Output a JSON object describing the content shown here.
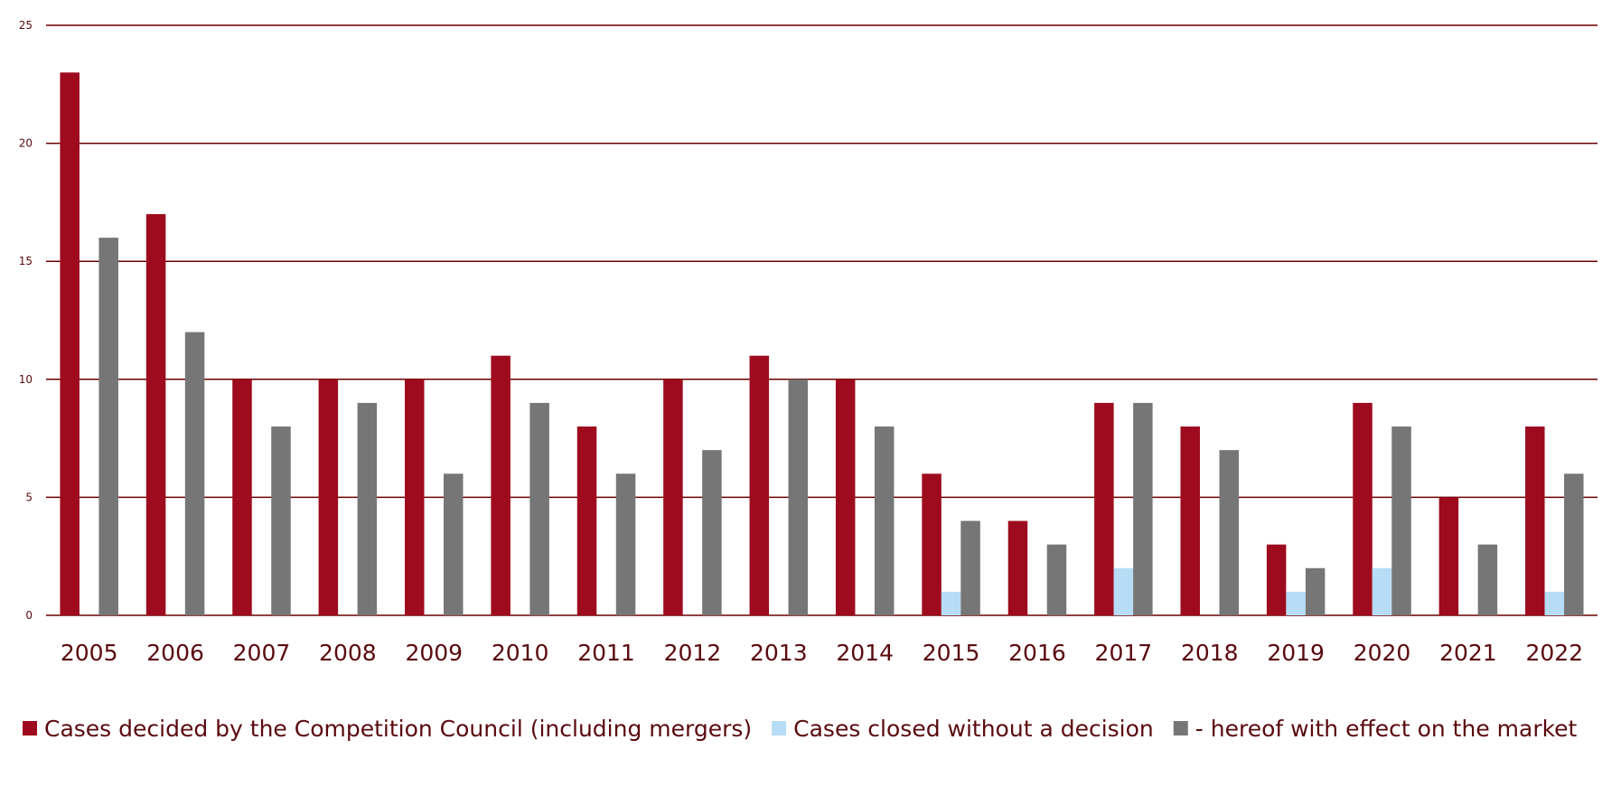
{
  "chart_data": {
    "type": "bar",
    "categories": [
      "2005",
      "2006",
      "2007",
      "2008",
      "2009",
      "2010",
      "2011",
      "2012",
      "2013",
      "2014",
      "2015",
      "2016",
      "2017",
      "2018",
      "2019",
      "2020",
      "2021",
      "2022"
    ],
    "series": [
      {
        "name": "Cases decided by the Competition Council (including mergers)",
        "color": "#9e0b1e",
        "values": [
          23,
          17,
          10,
          10,
          10,
          11,
          8,
          10,
          11,
          10,
          6,
          4,
          9,
          8,
          3,
          9,
          5,
          8
        ]
      },
      {
        "name": "Cases closed without a decision",
        "color": "#b7dcf5",
        "values": [
          0,
          0,
          0,
          0,
          0,
          0,
          0,
          0,
          0,
          0,
          1,
          0,
          2,
          0,
          1,
          2,
          0,
          1
        ]
      },
      {
        "name": "- hereof with effect on the market",
        "color": "#767676",
        "values": [
          16,
          12,
          8,
          9,
          6,
          9,
          6,
          7,
          10,
          8,
          4,
          3,
          9,
          7,
          2,
          8,
          3,
          6
        ]
      }
    ],
    "yticks": [
      "0",
      "5",
      "10",
      "15",
      "20",
      "25"
    ],
    "ylim": [
      0,
      25
    ],
    "grid": true,
    "gridline_color": "#6b0000",
    "legend": "bottom"
  }
}
